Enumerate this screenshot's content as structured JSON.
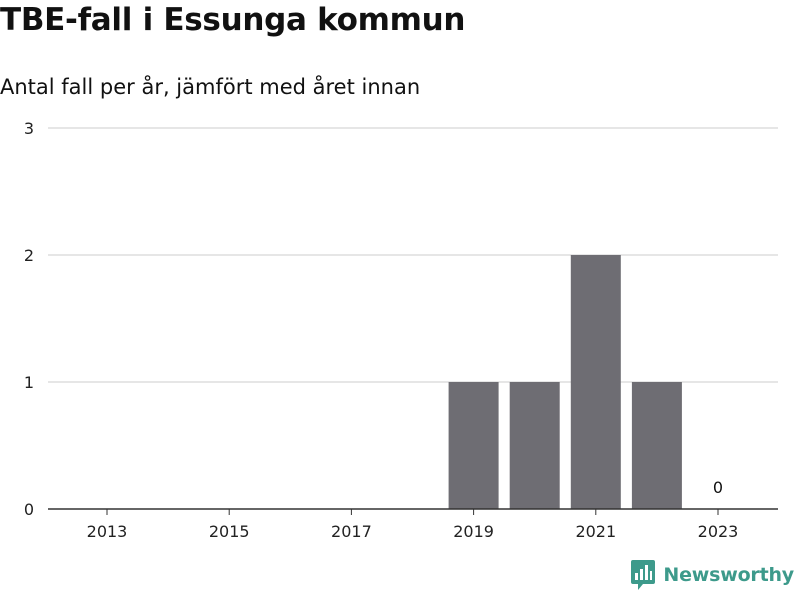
{
  "brand": {
    "name": "Newsworthy",
    "color": "#3d9a8b",
    "icon": "bar-chart-speech-bubble-icon"
  },
  "chart_data": {
    "type": "bar",
    "title": "TBE-fall i Essunga kommun",
    "subtitle": "Antal fall per år, jämfört med året innan",
    "xlabel": "",
    "ylabel": "",
    "categories": [
      "2013",
      "2014",
      "2015",
      "2016",
      "2017",
      "2018",
      "2019",
      "2020",
      "2021",
      "2022",
      "2023"
    ],
    "x_tick_labels": [
      "2013",
      "2015",
      "2017",
      "2019",
      "2021",
      "2023"
    ],
    "values": [
      0,
      0,
      0,
      0,
      0,
      0,
      1,
      1,
      2,
      1,
      0
    ],
    "data_labels": [
      {
        "category": "2023",
        "text": "0"
      }
    ],
    "ylim": [
      0,
      3
    ],
    "y_ticks": [
      0,
      1,
      2,
      3
    ],
    "grid": true,
    "legend": "none",
    "bar_color": "#6e6d73",
    "grid_color": "#dddddd",
    "axis_color": "#333333"
  }
}
